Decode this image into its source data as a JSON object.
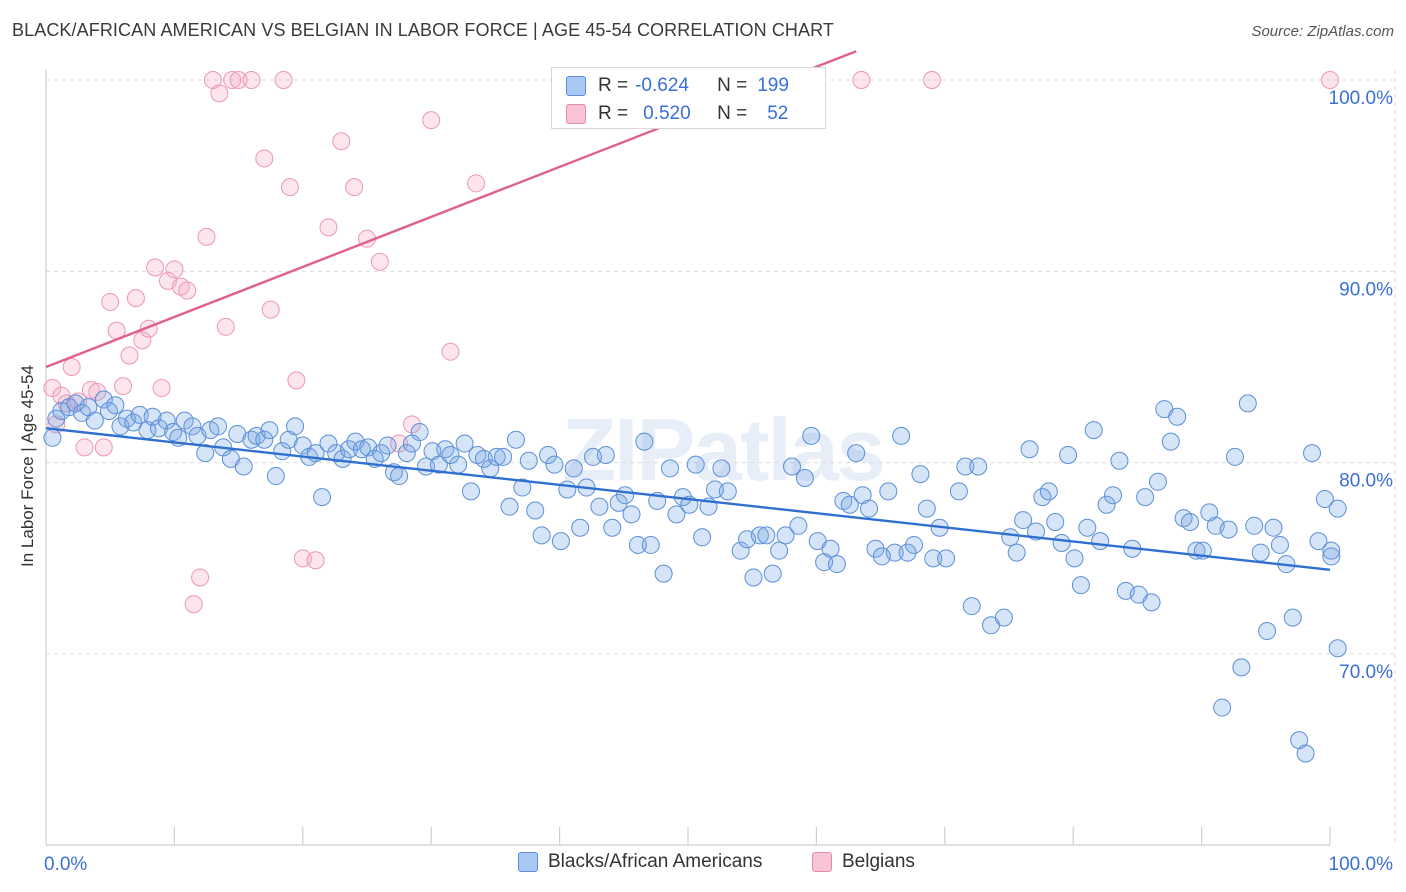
{
  "title": "BLACK/AFRICAN AMERICAN VS BELGIAN IN LABOR FORCE | AGE 45-54 CORRELATION CHART",
  "source": "Source: ZipAtlas.com",
  "watermark": "ZIPatlas",
  "stats": {
    "r_label": "R =",
    "n_label": "N =",
    "rows": [
      {
        "r": "-0.624",
        "n": "199",
        "color": "#a9c8f4",
        "border": "#5b8fd8"
      },
      {
        "r": "0.520",
        "n": "52",
        "color": "#f9c4d4",
        "border": "#e58aa8"
      }
    ]
  },
  "legend": {
    "items": [
      {
        "label": "Blacks/African Americans",
        "color": "#a9c8f4",
        "border": "#5b8fd8"
      },
      {
        "label": "Belgians",
        "color": "#f9c4d4",
        "border": "#e58aa8"
      }
    ]
  },
  "colors": {
    "blue_fill": "rgba(120,165,230,0.30)",
    "blue_stroke": "#5b8fd8",
    "blue_line": "#2f6fd0",
    "pink_fill": "rgba(246,170,196,0.30)",
    "pink_stroke": "#ec97b5",
    "pink_line": "#e0608c",
    "tick_label": "#3a6fd8",
    "grid": "#dcdcdc"
  },
  "chart_data": {
    "type": "scatter",
    "xlabel": "",
    "ylabel": "In Labor Force | Age 45-54",
    "xlim": [
      0,
      100
    ],
    "ylim": [
      60,
      101.5
    ],
    "x_tick_labels": [
      {
        "value": 0,
        "label": "0.0%"
      },
      {
        "value": 100,
        "label": "100.0%"
      }
    ],
    "y_tick_labels": [
      {
        "value": 100,
        "label": "100.0%"
      },
      {
        "value": 90,
        "label": "90.0%"
      },
      {
        "value": 80,
        "label": "80.0%"
      },
      {
        "value": 70,
        "label": "70.0%"
      }
    ],
    "grid": "horizontal dashed",
    "series": [
      {
        "name": "Blacks/African Americans",
        "trend": {
          "x": [
            0,
            100
          ],
          "y": [
            81.8,
            74.4
          ]
        },
        "points": [
          [
            0.5,
            81.3
          ],
          [
            0.8,
            82.3
          ],
          [
            1.2,
            82.7
          ],
          [
            1.8,
            82.9
          ],
          [
            2.3,
            83.1
          ],
          [
            2.8,
            82.6
          ],
          [
            3.3,
            82.9
          ],
          [
            3.8,
            82.2
          ],
          [
            4.5,
            83.3
          ],
          [
            4.9,
            82.7
          ],
          [
            5.4,
            83.0
          ],
          [
            5.8,
            81.9
          ],
          [
            6.3,
            82.3
          ],
          [
            6.8,
            82.1
          ],
          [
            7.3,
            82.5
          ],
          [
            7.9,
            81.7
          ],
          [
            8.3,
            82.4
          ],
          [
            8.8,
            81.8
          ],
          [
            9.4,
            82.2
          ],
          [
            9.9,
            81.6
          ],
          [
            10.3,
            81.3
          ],
          [
            10.8,
            82.2
          ],
          [
            11.4,
            81.9
          ],
          [
            11.8,
            81.4
          ],
          [
            12.4,
            80.5
          ],
          [
            12.8,
            81.7
          ],
          [
            13.4,
            81.9
          ],
          [
            13.8,
            80.8
          ],
          [
            14.4,
            80.2
          ],
          [
            14.9,
            81.5
          ],
          [
            15.4,
            79.8
          ],
          [
            16.0,
            81.2
          ],
          [
            16.4,
            81.4
          ],
          [
            17.0,
            81.2
          ],
          [
            17.4,
            81.7
          ],
          [
            17.9,
            79.3
          ],
          [
            18.4,
            80.6
          ],
          [
            18.9,
            81.2
          ],
          [
            19.4,
            81.9
          ],
          [
            20.0,
            80.9
          ],
          [
            20.5,
            80.3
          ],
          [
            21.0,
            80.5
          ],
          [
            21.5,
            78.2
          ],
          [
            22.0,
            81.0
          ],
          [
            22.6,
            80.5
          ],
          [
            23.1,
            80.2
          ],
          [
            23.6,
            80.7
          ],
          [
            24.1,
            81.1
          ],
          [
            24.6,
            80.7
          ],
          [
            25.1,
            80.8
          ],
          [
            25.6,
            80.2
          ],
          [
            26.1,
            80.5
          ],
          [
            26.6,
            80.9
          ],
          [
            27.1,
            79.5
          ],
          [
            27.5,
            79.3
          ],
          [
            28.1,
            80.5
          ],
          [
            28.5,
            81.0
          ],
          [
            29.1,
            81.6
          ],
          [
            29.6,
            79.8
          ],
          [
            30.1,
            80.6
          ],
          [
            30.6,
            79.9
          ],
          [
            31.1,
            80.7
          ],
          [
            31.5,
            80.4
          ],
          [
            32.1,
            79.9
          ],
          [
            32.6,
            81.0
          ],
          [
            33.1,
            78.5
          ],
          [
            33.6,
            80.4
          ],
          [
            34.1,
            80.2
          ],
          [
            34.6,
            79.7
          ],
          [
            35.1,
            80.3
          ],
          [
            35.6,
            80.3
          ],
          [
            36.1,
            77.7
          ],
          [
            36.6,
            81.2
          ],
          [
            37.1,
            78.7
          ],
          [
            37.6,
            80.1
          ],
          [
            38.1,
            77.5
          ],
          [
            38.6,
            76.2
          ],
          [
            39.1,
            80.4
          ],
          [
            39.6,
            79.9
          ],
          [
            40.1,
            75.9
          ],
          [
            40.6,
            78.6
          ],
          [
            41.1,
            79.7
          ],
          [
            41.6,
            76.6
          ],
          [
            42.1,
            78.7
          ],
          [
            42.6,
            80.3
          ],
          [
            43.1,
            77.7
          ],
          [
            43.6,
            80.4
          ],
          [
            44.1,
            76.6
          ],
          [
            44.6,
            77.9
          ],
          [
            45.1,
            78.3
          ],
          [
            45.6,
            77.3
          ],
          [
            46.1,
            75.7
          ],
          [
            46.6,
            81.1
          ],
          [
            47.1,
            75.7
          ],
          [
            47.6,
            78.0
          ],
          [
            48.1,
            74.2
          ],
          [
            48.6,
            79.7
          ],
          [
            49.1,
            77.3
          ],
          [
            49.6,
            78.2
          ],
          [
            50.1,
            77.8
          ],
          [
            50.6,
            79.9
          ],
          [
            51.1,
            76.1
          ],
          [
            51.6,
            77.7
          ],
          [
            52.1,
            78.6
          ],
          [
            52.6,
            79.7
          ],
          [
            53.1,
            78.5
          ],
          [
            54.1,
            75.4
          ],
          [
            54.6,
            76.0
          ],
          [
            55.1,
            74.0
          ],
          [
            55.6,
            76.2
          ],
          [
            56.1,
            76.2
          ],
          [
            56.6,
            74.2
          ],
          [
            57.1,
            75.4
          ],
          [
            57.6,
            76.2
          ],
          [
            58.1,
            79.8
          ],
          [
            58.6,
            76.7
          ],
          [
            59.1,
            79.2
          ],
          [
            59.6,
            81.4
          ],
          [
            60.1,
            75.9
          ],
          [
            60.6,
            74.8
          ],
          [
            61.1,
            75.5
          ],
          [
            61.6,
            74.7
          ],
          [
            62.1,
            78.0
          ],
          [
            62.6,
            77.8
          ],
          [
            63.1,
            80.5
          ],
          [
            63.6,
            78.3
          ],
          [
            64.1,
            77.6
          ],
          [
            64.6,
            75.5
          ],
          [
            65.1,
            75.1
          ],
          [
            65.6,
            78.5
          ],
          [
            66.1,
            75.3
          ],
          [
            66.6,
            81.4
          ],
          [
            67.1,
            75.3
          ],
          [
            67.6,
            75.7
          ],
          [
            68.1,
            79.4
          ],
          [
            68.6,
            77.6
          ],
          [
            69.1,
            75.0
          ],
          [
            69.6,
            76.6
          ],
          [
            70.1,
            75.0
          ],
          [
            71.1,
            78.5
          ],
          [
            71.6,
            79.8
          ],
          [
            72.1,
            72.5
          ],
          [
            72.6,
            79.8
          ],
          [
            73.6,
            71.5
          ],
          [
            74.6,
            71.9
          ],
          [
            75.1,
            76.1
          ],
          [
            75.6,
            75.3
          ],
          [
            76.1,
            77.0
          ],
          [
            76.6,
            80.7
          ],
          [
            77.1,
            76.4
          ],
          [
            77.6,
            78.2
          ],
          [
            78.1,
            78.5
          ],
          [
            78.6,
            76.9
          ],
          [
            79.1,
            75.8
          ],
          [
            79.6,
            80.4
          ],
          [
            80.1,
            75.0
          ],
          [
            80.6,
            73.6
          ],
          [
            81.1,
            76.6
          ],
          [
            81.6,
            81.7
          ],
          [
            82.1,
            75.9
          ],
          [
            82.6,
            77.8
          ],
          [
            83.1,
            78.3
          ],
          [
            83.6,
            80.1
          ],
          [
            84.1,
            73.3
          ],
          [
            84.6,
            75.5
          ],
          [
            85.1,
            73.1
          ],
          [
            85.6,
            78.2
          ],
          [
            86.1,
            72.7
          ],
          [
            86.6,
            79.0
          ],
          [
            87.1,
            82.8
          ],
          [
            87.6,
            81.1
          ],
          [
            88.1,
            82.4
          ],
          [
            88.6,
            77.1
          ],
          [
            89.1,
            76.9
          ],
          [
            89.6,
            75.4
          ],
          [
            90.1,
            75.4
          ],
          [
            90.6,
            77.4
          ],
          [
            91.1,
            76.7
          ],
          [
            91.6,
            67.2
          ],
          [
            92.1,
            76.5
          ],
          [
            92.6,
            80.3
          ],
          [
            93.1,
            69.3
          ],
          [
            93.6,
            83.1
          ],
          [
            94.1,
            76.7
          ],
          [
            94.6,
            75.3
          ],
          [
            95.1,
            71.2
          ],
          [
            95.6,
            76.6
          ],
          [
            96.1,
            75.7
          ],
          [
            96.6,
            74.7
          ],
          [
            97.1,
            71.9
          ],
          [
            97.6,
            65.5
          ],
          [
            98.1,
            64.8
          ],
          [
            98.6,
            80.5
          ],
          [
            99.1,
            75.9
          ],
          [
            99.6,
            78.1
          ],
          [
            100.1,
            75.1
          ],
          [
            100.6,
            70.3
          ],
          [
            100.1,
            75.4
          ],
          [
            100.6,
            77.6
          ]
        ]
      },
      {
        "name": "Belgians",
        "trend": {
          "x": [
            0,
            63.1
          ],
          "y": [
            85.0,
            101.5
          ]
        },
        "points": [
          [
            0.5,
            83.9
          ],
          [
            0.8,
            82.0
          ],
          [
            1.2,
            83.5
          ],
          [
            1.6,
            83.1
          ],
          [
            2.0,
            85.0
          ],
          [
            2.5,
            83.2
          ],
          [
            3.0,
            80.8
          ],
          [
            3.5,
            83.8
          ],
          [
            4.0,
            83.7
          ],
          [
            4.5,
            80.8
          ],
          [
            5.0,
            88.4
          ],
          [
            5.5,
            86.9
          ],
          [
            6.0,
            84.0
          ],
          [
            6.5,
            85.6
          ],
          [
            7.0,
            88.6
          ],
          [
            7.5,
            86.4
          ],
          [
            8.0,
            87.0
          ],
          [
            8.5,
            90.2
          ],
          [
            9.0,
            83.9
          ],
          [
            9.5,
            89.5
          ],
          [
            10.0,
            90.1
          ],
          [
            10.5,
            89.2
          ],
          [
            11.0,
            89.0
          ],
          [
            11.5,
            72.6
          ],
          [
            12.0,
            74.0
          ],
          [
            12.5,
            91.8
          ],
          [
            13.0,
            100.0
          ],
          [
            13.5,
            99.3
          ],
          [
            14.0,
            87.1
          ],
          [
            14.5,
            100.0
          ],
          [
            15.0,
            100.0
          ],
          [
            16.0,
            100.0
          ],
          [
            17.0,
            95.9
          ],
          [
            17.5,
            88.0
          ],
          [
            18.5,
            100.0
          ],
          [
            19.0,
            94.4
          ],
          [
            19.5,
            84.3
          ],
          [
            20.0,
            75.0
          ],
          [
            21.0,
            74.9
          ],
          [
            22.0,
            92.3
          ],
          [
            23.0,
            96.8
          ],
          [
            24.0,
            94.4
          ],
          [
            25.0,
            91.7
          ],
          [
            26.0,
            90.5
          ],
          [
            27.5,
            81.0
          ],
          [
            28.5,
            82.0
          ],
          [
            30.0,
            97.9
          ],
          [
            31.5,
            85.8
          ],
          [
            33.5,
            94.6
          ],
          [
            63.5,
            100.0
          ],
          [
            69.0,
            100.0
          ],
          [
            100.0,
            100.0
          ]
        ]
      }
    ]
  }
}
